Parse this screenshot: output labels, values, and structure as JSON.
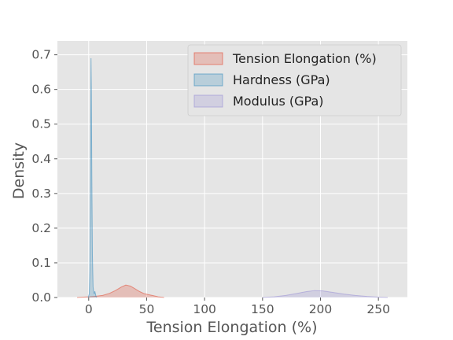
{
  "chart_data": {
    "type": "area",
    "title": "",
    "xlabel": "Tension Elongation (%)",
    "ylabel": "Density",
    "xlim": [
      -27,
      275
    ],
    "ylim": [
      0,
      0.74
    ],
    "x_ticks": [
      0,
      50,
      100,
      150,
      200,
      250
    ],
    "y_ticks": [
      0.0,
      0.1,
      0.2,
      0.3,
      0.4,
      0.5,
      0.6,
      0.7
    ],
    "grid": true,
    "legend_position": "top-right",
    "series": [
      {
        "name": "Tension Elongation (%)",
        "color": "#E24A33",
        "points": [
          [
            -10,
            0
          ],
          [
            0,
            0.002
          ],
          [
            5,
            0.003
          ],
          [
            12,
            0.006
          ],
          [
            18,
            0.012
          ],
          [
            23,
            0.02
          ],
          [
            28,
            0.03
          ],
          [
            32,
            0.036
          ],
          [
            36,
            0.033
          ],
          [
            40,
            0.025
          ],
          [
            44,
            0.017
          ],
          [
            48,
            0.011
          ],
          [
            52,
            0.008
          ],
          [
            56,
            0.005
          ],
          [
            60,
            0.002
          ],
          [
            65,
            0
          ]
        ]
      },
      {
        "name": "Hardness (GPa)",
        "color": "#348ABD",
        "points": [
          [
            -0.5,
            0
          ],
          [
            0.5,
            0.01
          ],
          [
            1.0,
            0.08
          ],
          [
            1.5,
            0.35
          ],
          [
            2.0,
            0.69
          ],
          [
            2.3,
            0.6
          ],
          [
            2.7,
            0.35
          ],
          [
            3.2,
            0.12
          ],
          [
            3.8,
            0.03
          ],
          [
            4.5,
            0.012
          ],
          [
            5.0,
            0.012
          ],
          [
            5.3,
            0.018
          ],
          [
            5.7,
            0.012
          ],
          [
            6.3,
            0.003
          ],
          [
            7,
            0
          ]
        ]
      },
      {
        "name": "Modulus (GPa)",
        "color": "#988ED5",
        "points": [
          [
            150,
            0
          ],
          [
            160,
            0.002
          ],
          [
            170,
            0.006
          ],
          [
            180,
            0.012
          ],
          [
            188,
            0.017
          ],
          [
            195,
            0.02
          ],
          [
            202,
            0.019
          ],
          [
            210,
            0.015
          ],
          [
            220,
            0.01
          ],
          [
            230,
            0.006
          ],
          [
            240,
            0.003
          ],
          [
            250,
            0.001
          ],
          [
            258,
            0
          ]
        ]
      }
    ]
  }
}
